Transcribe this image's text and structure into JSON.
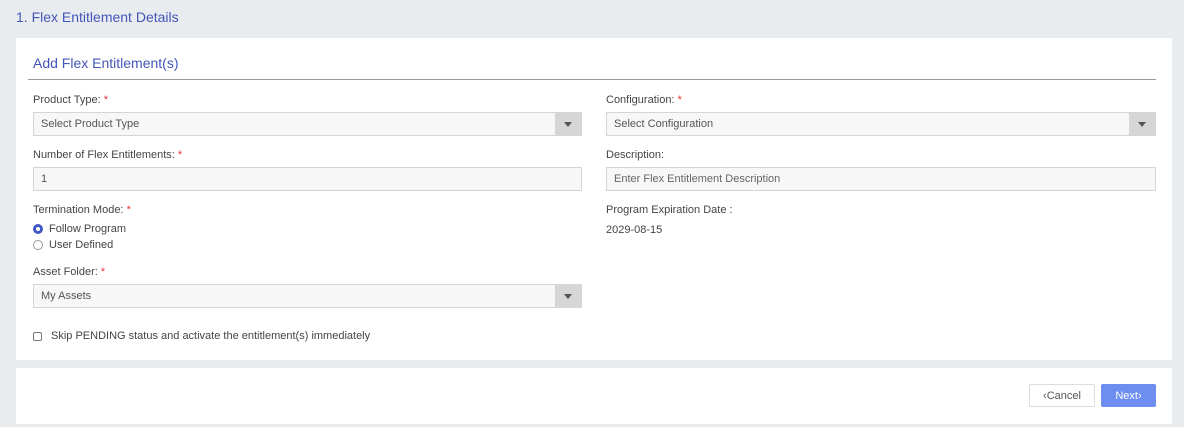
{
  "page_title": "1. Flex Entitlement Details",
  "section_title": "Add Flex Entitlement(s)",
  "required_mark": "*",
  "product_type": {
    "label": "Product Type:",
    "value": "Select Product Type"
  },
  "configuration": {
    "label": "Configuration:",
    "value": "Select Configuration"
  },
  "num_entitlements": {
    "label": "Number of Flex Entitlements:",
    "value": "1"
  },
  "description": {
    "label": "Description:",
    "placeholder": "Enter Flex Entitlement Description"
  },
  "termination": {
    "label": "Termination Mode:",
    "options": [
      {
        "label": "Follow Program",
        "selected": true
      },
      {
        "label": "User Defined",
        "selected": false
      }
    ]
  },
  "expiration": {
    "label": "Program Expiration Date :",
    "value": "2029-08-15"
  },
  "asset_folder": {
    "label": "Asset Folder:",
    "value": "My Assets"
  },
  "skip_pending": {
    "label": "Skip PENDING status and activate the entitlement(s) immediately",
    "checked": false
  },
  "buttons": {
    "cancel": "Cancel",
    "next": "Next"
  },
  "colors": {
    "accent": "#4355b9",
    "next_button": "#6d8ef0"
  }
}
